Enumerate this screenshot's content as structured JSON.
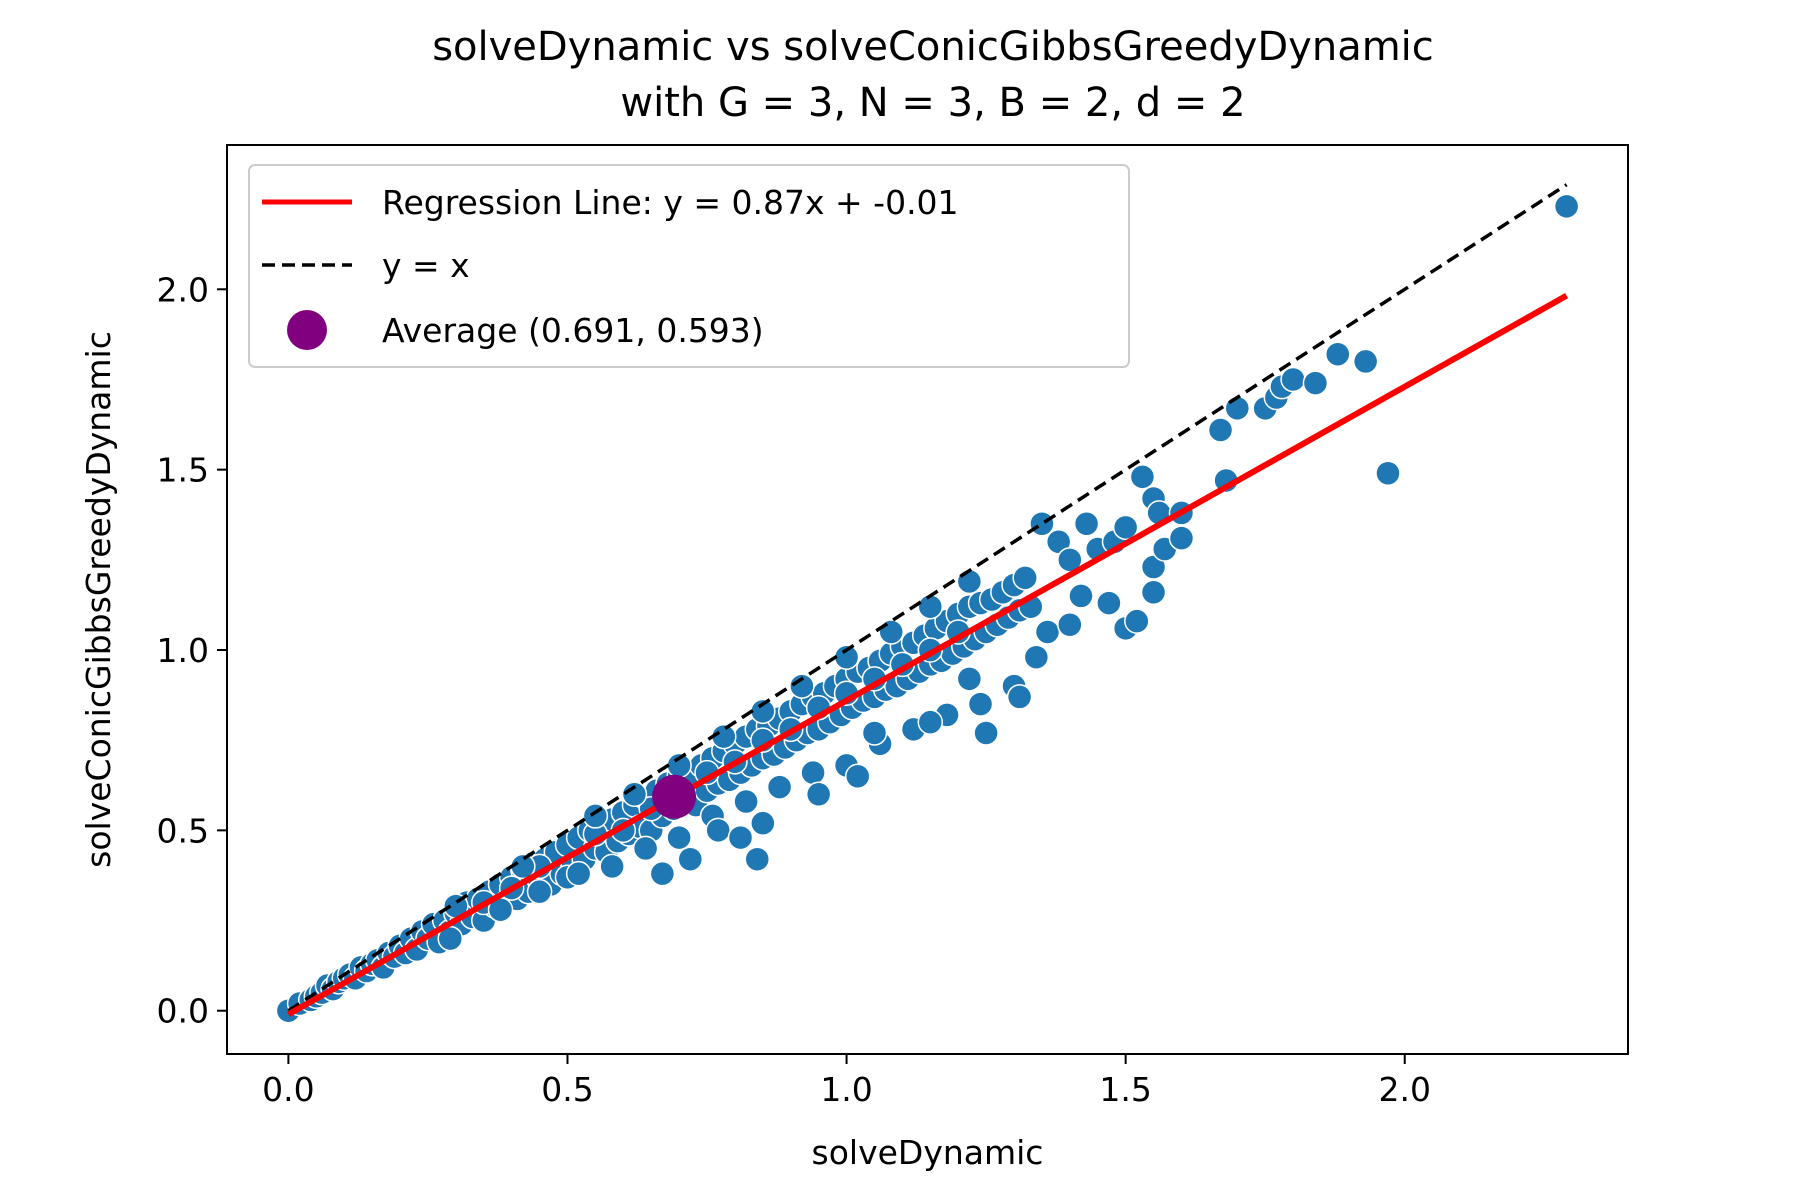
{
  "chart_data": {
    "type": "scatter",
    "title": "solveDynamic vs solveConicGibbsGreedyDynamic",
    "subtitle": "with G = 3, N = 3, B = 2, d = 2",
    "xlabel": "solveDynamic",
    "ylabel": "solveConicGibbsGreedyDynamic",
    "xlim": [
      -0.11,
      2.4
    ],
    "ylim": [
      -0.12,
      2.4
    ],
    "xticks": [
      0.0,
      0.5,
      1.0,
      1.5,
      2.0
    ],
    "xtick_labels": [
      "0.0",
      "0.5",
      "1.0",
      "1.5",
      "2.0"
    ],
    "yticks": [
      0.0,
      0.5,
      1.0,
      1.5,
      2.0
    ],
    "ytick_labels": [
      "0.0",
      "0.5",
      "1.0",
      "1.5",
      "2.0"
    ],
    "grid": false,
    "legend_position": "top-left",
    "colors": {
      "points": "#1f77b4",
      "point_edge": "#ffffff",
      "regression": "#ff0000",
      "identity": "#000000",
      "average": "#800080"
    },
    "legend": [
      {
        "label": "Regression Line: y = 0.87x + -0.01",
        "style": "solid-line",
        "color": "#ff0000"
      },
      {
        "label": "y = x",
        "style": "dashed-line",
        "color": "#000000"
      },
      {
        "label": "Average (0.691, 0.593)",
        "style": "marker",
        "color": "#800080"
      }
    ],
    "regression": {
      "slope": 0.87,
      "intercept": -0.01,
      "x_range": [
        0.0,
        2.29
      ]
    },
    "identity_line": {
      "x_range": [
        0.0,
        2.29
      ]
    },
    "average": {
      "x": 0.691,
      "y": 0.593
    },
    "series": [
      {
        "points": [
          [
            0.0,
            0.0
          ],
          [
            0.02,
            0.02
          ],
          [
            0.04,
            0.03
          ],
          [
            0.05,
            0.04
          ],
          [
            0.06,
            0.05
          ],
          [
            0.07,
            0.07
          ],
          [
            0.08,
            0.06
          ],
          [
            0.09,
            0.08
          ],
          [
            0.1,
            0.09
          ],
          [
            0.11,
            0.1
          ],
          [
            0.12,
            0.09
          ],
          [
            0.13,
            0.12
          ],
          [
            0.14,
            0.11
          ],
          [
            0.15,
            0.13
          ],
          [
            0.16,
            0.14
          ],
          [
            0.17,
            0.12
          ],
          [
            0.18,
            0.16
          ],
          [
            0.19,
            0.15
          ],
          [
            0.2,
            0.18
          ],
          [
            0.21,
            0.16
          ],
          [
            0.22,
            0.2
          ],
          [
            0.23,
            0.17
          ],
          [
            0.24,
            0.22
          ],
          [
            0.25,
            0.2
          ],
          [
            0.26,
            0.24
          ],
          [
            0.27,
            0.19
          ],
          [
            0.28,
            0.25
          ],
          [
            0.29,
            0.22
          ],
          [
            0.3,
            0.27
          ],
          [
            0.31,
            0.24
          ],
          [
            0.32,
            0.3
          ],
          [
            0.33,
            0.26
          ],
          [
            0.34,
            0.31
          ],
          [
            0.35,
            0.25
          ],
          [
            0.36,
            0.33
          ],
          [
            0.37,
            0.29
          ],
          [
            0.38,
            0.35
          ],
          [
            0.39,
            0.3
          ],
          [
            0.4,
            0.37
          ],
          [
            0.41,
            0.31
          ],
          [
            0.42,
            0.39
          ],
          [
            0.43,
            0.33
          ],
          [
            0.44,
            0.41
          ],
          [
            0.45,
            0.36
          ],
          [
            0.46,
            0.42
          ],
          [
            0.47,
            0.35
          ],
          [
            0.48,
            0.44
          ],
          [
            0.49,
            0.38
          ],
          [
            0.5,
            0.46
          ],
          [
            0.51,
            0.4
          ],
          [
            0.52,
            0.48
          ],
          [
            0.53,
            0.42
          ],
          [
            0.54,
            0.5
          ],
          [
            0.55,
            0.45
          ],
          [
            0.56,
            0.52
          ],
          [
            0.57,
            0.44
          ],
          [
            0.58,
            0.53
          ],
          [
            0.59,
            0.47
          ],
          [
            0.6,
            0.55
          ],
          [
            0.61,
            0.49
          ],
          [
            0.62,
            0.57
          ],
          [
            0.63,
            0.51
          ],
          [
            0.64,
            0.59
          ],
          [
            0.65,
            0.5
          ],
          [
            0.66,
            0.61
          ],
          [
            0.67,
            0.54
          ],
          [
            0.68,
            0.63
          ],
          [
            0.69,
            0.56
          ],
          [
            0.7,
            0.65
          ],
          [
            0.71,
            0.58
          ],
          [
            0.72,
            0.66
          ],
          [
            0.73,
            0.57
          ],
          [
            0.74,
            0.68
          ],
          [
            0.75,
            0.61
          ],
          [
            0.76,
            0.7
          ],
          [
            0.77,
            0.63
          ],
          [
            0.78,
            0.72
          ],
          [
            0.79,
            0.64
          ],
          [
            0.8,
            0.74
          ],
          [
            0.81,
            0.66
          ],
          [
            0.82,
            0.76
          ],
          [
            0.83,
            0.68
          ],
          [
            0.84,
            0.78
          ],
          [
            0.85,
            0.7
          ],
          [
            0.86,
            0.79
          ],
          [
            0.87,
            0.71
          ],
          [
            0.88,
            0.81
          ],
          [
            0.89,
            0.73
          ],
          [
            0.9,
            0.83
          ],
          [
            0.91,
            0.75
          ],
          [
            0.92,
            0.85
          ],
          [
            0.93,
            0.77
          ],
          [
            0.94,
            0.87
          ],
          [
            0.95,
            0.78
          ],
          [
            0.96,
            0.88
          ],
          [
            0.97,
            0.8
          ],
          [
            0.98,
            0.9
          ],
          [
            0.99,
            0.82
          ],
          [
            1.0,
            0.92
          ],
          [
            1.01,
            0.84
          ],
          [
            1.02,
            0.94
          ],
          [
            1.03,
            0.86
          ],
          [
            1.04,
            0.95
          ],
          [
            1.05,
            0.87
          ],
          [
            1.06,
            0.97
          ],
          [
            1.07,
            0.89
          ],
          [
            1.08,
            0.99
          ],
          [
            1.09,
            0.9
          ],
          [
            1.1,
            1.01
          ],
          [
            1.11,
            0.92
          ],
          [
            1.12,
            1.02
          ],
          [
            1.13,
            0.94
          ],
          [
            1.14,
            1.04
          ],
          [
            1.15,
            0.96
          ],
          [
            1.16,
            1.06
          ],
          [
            1.17,
            0.97
          ],
          [
            1.18,
            1.08
          ],
          [
            1.19,
            0.99
          ],
          [
            1.2,
            1.1
          ],
          [
            1.21,
            1.01
          ],
          [
            1.22,
            1.12
          ],
          [
            1.23,
            1.03
          ],
          [
            1.24,
            1.13
          ],
          [
            1.25,
            1.05
          ],
          [
            1.26,
            1.14
          ],
          [
            1.27,
            1.07
          ],
          [
            1.28,
            1.16
          ],
          [
            1.29,
            1.09
          ],
          [
            1.3,
            1.18
          ],
          [
            1.31,
            1.11
          ],
          [
            1.32,
            1.2
          ],
          [
            1.33,
            1.12
          ],
          [
            0.35,
            0.3
          ],
          [
            0.4,
            0.34
          ],
          [
            0.45,
            0.4
          ],
          [
            0.5,
            0.37
          ],
          [
            0.55,
            0.49
          ],
          [
            0.6,
            0.5
          ],
          [
            0.65,
            0.56
          ],
          [
            0.7,
            0.6
          ],
          [
            0.75,
            0.66
          ],
          [
            0.8,
            0.69
          ],
          [
            0.85,
            0.75
          ],
          [
            0.9,
            0.78
          ],
          [
            0.95,
            0.84
          ],
          [
            1.0,
            0.88
          ],
          [
            1.05,
            0.92
          ],
          [
            1.1,
            0.96
          ],
          [
            1.15,
            1.0
          ],
          [
            1.2,
            1.05
          ],
          [
            0.3,
            0.29
          ],
          [
            0.42,
            0.4
          ],
          [
            0.55,
            0.54
          ],
          [
            0.62,
            0.6
          ],
          [
            0.7,
            0.68
          ],
          [
            0.78,
            0.76
          ],
          [
            0.85,
            0.83
          ],
          [
            0.92,
            0.9
          ],
          [
            1.0,
            0.98
          ],
          [
            1.08,
            1.05
          ],
          [
            1.15,
            1.12
          ],
          [
            1.22,
            1.19
          ],
          [
            0.29,
            0.2
          ],
          [
            0.38,
            0.28
          ],
          [
            0.45,
            0.33
          ],
          [
            0.52,
            0.38
          ],
          [
            0.58,
            0.4
          ],
          [
            0.64,
            0.45
          ],
          [
            0.7,
            0.48
          ],
          [
            0.76,
            0.54
          ],
          [
            0.82,
            0.58
          ],
          [
            0.88,
            0.62
          ],
          [
            0.94,
            0.66
          ],
          [
            1.0,
            0.68
          ],
          [
            1.06,
            0.74
          ],
          [
            1.12,
            0.78
          ],
          [
            1.18,
            0.82
          ],
          [
            1.24,
            0.85
          ],
          [
            0.67,
            0.38
          ],
          [
            0.72,
            0.42
          ],
          [
            0.77,
            0.5
          ],
          [
            0.81,
            0.48
          ],
          [
            0.84,
            0.42
          ],
          [
            0.85,
            0.52
          ],
          [
            0.95,
            0.6
          ],
          [
            1.02,
            0.65
          ],
          [
            1.05,
            0.77
          ],
          [
            1.15,
            0.8
          ],
          [
            1.22,
            0.92
          ],
          [
            1.3,
            0.9
          ],
          [
            1.31,
            0.87
          ],
          [
            1.25,
            0.77
          ],
          [
            1.34,
            0.98
          ],
          [
            1.36,
            1.05
          ],
          [
            1.4,
            1.07
          ],
          [
            1.42,
            1.15
          ],
          [
            1.45,
            1.28
          ],
          [
            1.38,
            1.3
          ],
          [
            1.35,
            1.35
          ],
          [
            1.4,
            1.25
          ],
          [
            1.43,
            1.35
          ],
          [
            1.48,
            1.3
          ],
          [
            1.5,
            1.06
          ],
          [
            1.52,
            1.08
          ],
          [
            1.53,
            1.48
          ],
          [
            1.55,
            1.42
          ],
          [
            1.56,
            1.38
          ],
          [
            1.55,
            1.23
          ],
          [
            1.57,
            1.28
          ],
          [
            1.55,
            1.16
          ],
          [
            1.6,
            1.31
          ],
          [
            1.6,
            1.38
          ],
          [
            1.47,
            1.13
          ],
          [
            1.5,
            1.34
          ],
          [
            1.68,
            1.47
          ],
          [
            1.67,
            1.61
          ],
          [
            1.7,
            1.67
          ],
          [
            1.75,
            1.67
          ],
          [
            1.77,
            1.7
          ],
          [
            1.78,
            1.73
          ],
          [
            1.8,
            1.75
          ],
          [
            1.84,
            1.74
          ],
          [
            1.88,
            1.82
          ],
          [
            1.93,
            1.8
          ],
          [
            1.97,
            1.49
          ],
          [
            2.29,
            2.23
          ]
        ]
      }
    ]
  }
}
